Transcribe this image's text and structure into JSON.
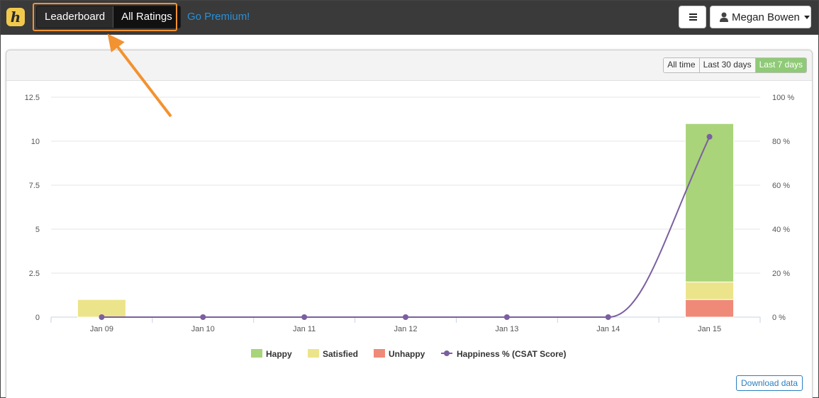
{
  "topbar": {
    "logo_letter": "h",
    "tabs": [
      {
        "label": "Leaderboard",
        "active": false
      },
      {
        "label": "All Ratings",
        "active": true
      }
    ],
    "premium_link": "Go Premium!",
    "menu_icon": "hamburger-icon",
    "user": {
      "name": "Megan Bowen",
      "icon": "user-icon"
    }
  },
  "range": {
    "options": [
      "All time",
      "Last 30 days",
      "Last 7 days"
    ],
    "selected": "Last 7 days"
  },
  "download_label": "Download data",
  "colors": {
    "topbar_bg": "#3a3a3a",
    "accent_orange": "#f39231",
    "happy": "#a9d47a",
    "satisfied": "#ece48a",
    "unhappy": "#ef8a78",
    "happiness_line": "#7b5fa0",
    "link_blue": "#2a8fd6",
    "range_active": "#8fca76"
  },
  "chart_data": {
    "type": "bar",
    "stacked": true,
    "categories": [
      "Jan 09",
      "Jan 10",
      "Jan 11",
      "Jan 12",
      "Jan 13",
      "Jan 14",
      "Jan 15"
    ],
    "series": [
      {
        "name": "Happy",
        "values": [
          0,
          0,
          0,
          0,
          0,
          0,
          9
        ]
      },
      {
        "name": "Satisfied",
        "values": [
          1,
          0,
          0,
          0,
          0,
          0,
          1
        ]
      },
      {
        "name": "Unhappy",
        "values": [
          0,
          0,
          0,
          0,
          0,
          0,
          1
        ]
      }
    ],
    "line_series": {
      "name": "Happiness % (CSAT Score)",
      "values": [
        0,
        0,
        0,
        0,
        0,
        0,
        82
      ],
      "axis": "right"
    },
    "ylim": [
      0,
      12.5
    ],
    "yticks": [
      "0",
      "2.5",
      "5",
      "7.5",
      "10",
      "12.5"
    ],
    "y2lim": [
      0,
      100
    ],
    "y2ticks": [
      "0 %",
      "20 %",
      "40 %",
      "60 %",
      "80 %",
      "100 %"
    ],
    "grid": true,
    "legend": "bottom"
  }
}
